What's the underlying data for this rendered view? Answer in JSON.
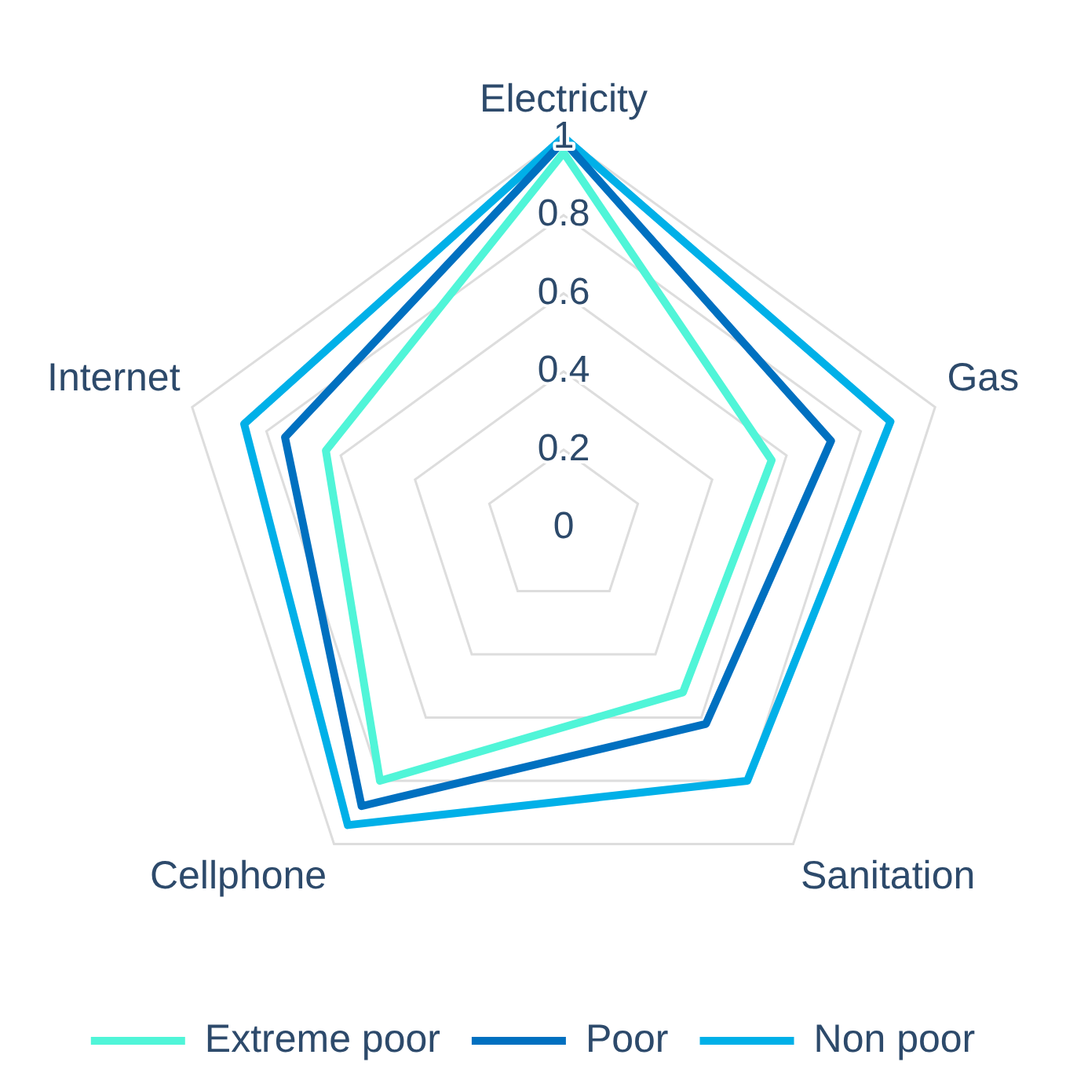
{
  "chart_data": {
    "type": "radar",
    "categories": [
      "Electricity",
      "Gas",
      "Sanitation",
      "Cellphone",
      "Internet"
    ],
    "series": [
      {
        "name": "Extreme poor",
        "color": "#50f5d8",
        "values": [
          0.96,
          0.56,
          0.52,
          0.8,
          0.64
        ]
      },
      {
        "name": "Poor",
        "color": "#0070c0",
        "values": [
          0.99,
          0.72,
          0.62,
          0.88,
          0.75
        ]
      },
      {
        "name": "Non poor",
        "color": "#00b0e8",
        "values": [
          1,
          0.88,
          0.8,
          0.94,
          0.86
        ]
      }
    ],
    "ylim": [
      0,
      1
    ],
    "yticks": [
      0,
      0.2,
      0.4,
      0.6,
      0.8,
      1
    ],
    "grid": true,
    "legend": "bottom",
    "marker": "none",
    "line_style": "solid"
  }
}
